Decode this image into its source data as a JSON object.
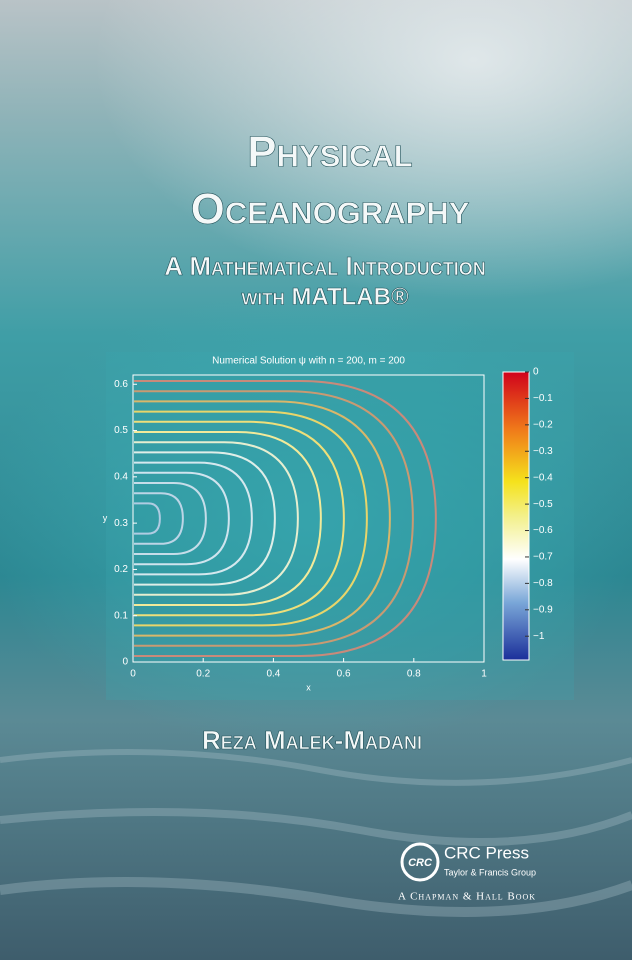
{
  "cover": {
    "title_line1": "Physical",
    "title_line2": "Oceanography",
    "subtitle_line1": "A Mathematical Introduction",
    "subtitle_line2": "with MATLAB®",
    "author": "Reza Malek-Madani",
    "publisher": "CRC Press",
    "publisher_group": "Taylor & Francis Group",
    "imprint": "A Chapman & Hall Book",
    "logo": "CRC"
  },
  "figure": {
    "title": "Numerical Solution ψ with n = 200, m = 200",
    "xlabel": "x",
    "ylabel": "y",
    "xlim": [
      0,
      1
    ],
    "ylim": [
      0,
      0.62
    ],
    "xticks": [
      0,
      0.2,
      0.4,
      0.6,
      0.8,
      1
    ],
    "yticks": [
      0,
      0.1,
      0.2,
      0.3,
      0.4,
      0.5,
      0.6
    ],
    "colorbar_lim": [
      -1.09,
      0
    ],
    "colorbar_ticks": [
      0,
      {
        "value": -0.1,
        "label": "−0.1"
      },
      {
        "value": -0.2,
        "label": "−0.2"
      },
      {
        "value": -0.3,
        "label": "−0.3"
      },
      {
        "value": -0.4,
        "label": "−0.4"
      },
      {
        "value": -0.5,
        "label": "−0.5"
      },
      {
        "value": -0.6,
        "label": "−0.6"
      },
      {
        "value": -0.7,
        "label": "−0.7"
      },
      {
        "value": -0.8,
        "label": "−0.8"
      },
      {
        "value": -0.9,
        "label": "−0.9"
      },
      {
        "value": -1,
        "label": "−1"
      }
    ]
  }
}
